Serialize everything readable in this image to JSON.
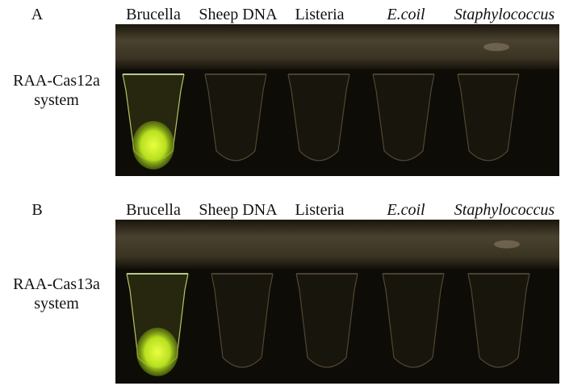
{
  "panels": [
    {
      "label": "A",
      "system": [
        "RAA-Cas12a",
        "system"
      ],
      "columns": [
        "Brucella",
        "Sheep DNA",
        "Listeria",
        "E.coil",
        "Staphylococcus"
      ]
    },
    {
      "label": "B",
      "system": [
        "RAA-Cas13a",
        "system"
      ],
      "columns": [
        "Brucella",
        "Sheep DNA",
        "Listeria",
        "E.coil",
        "Staphylococcus"
      ]
    }
  ]
}
